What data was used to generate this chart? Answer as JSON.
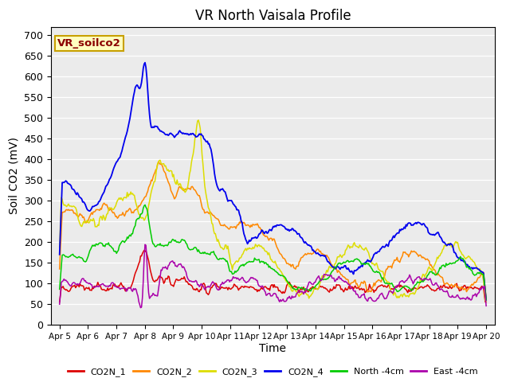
{
  "title": "VR North Vaisala Profile",
  "xlabel": "Time",
  "ylabel": "Soil CO2 (mV)",
  "annotation": "VR_soilco2",
  "ylim": [
    0,
    720
  ],
  "yticks": [
    0,
    50,
    100,
    150,
    200,
    250,
    300,
    350,
    400,
    450,
    500,
    550,
    600,
    650,
    700
  ],
  "fig_bg": "#ffffff",
  "plot_bg": "#ebebeb",
  "series_colors": {
    "CO2N_1": "#dd0000",
    "CO2N_2": "#ff8800",
    "CO2N_3": "#dddd00",
    "CO2N_4": "#0000ee",
    "North_4cm": "#00cc00",
    "East_4cm": "#aa00aa"
  },
  "legend_labels": [
    "CO2N_1",
    "CO2N_2",
    "CO2N_3",
    "CO2N_4",
    "North -4cm",
    "East -4cm"
  ],
  "xtick_labels": [
    "Apr 5",
    "Apr 6",
    "Apr 7",
    "Apr 8",
    "Apr 9",
    "Apr 10",
    "Apr 11",
    "Apr 12",
    "Apr 13",
    "Apr 14",
    "Apr 15",
    "Apr 16",
    "Apr 17",
    "Apr 18",
    "Apr 19",
    "Apr 20"
  ],
  "title_fontsize": 12,
  "axis_fontsize": 10,
  "tick_fontsize": 9
}
